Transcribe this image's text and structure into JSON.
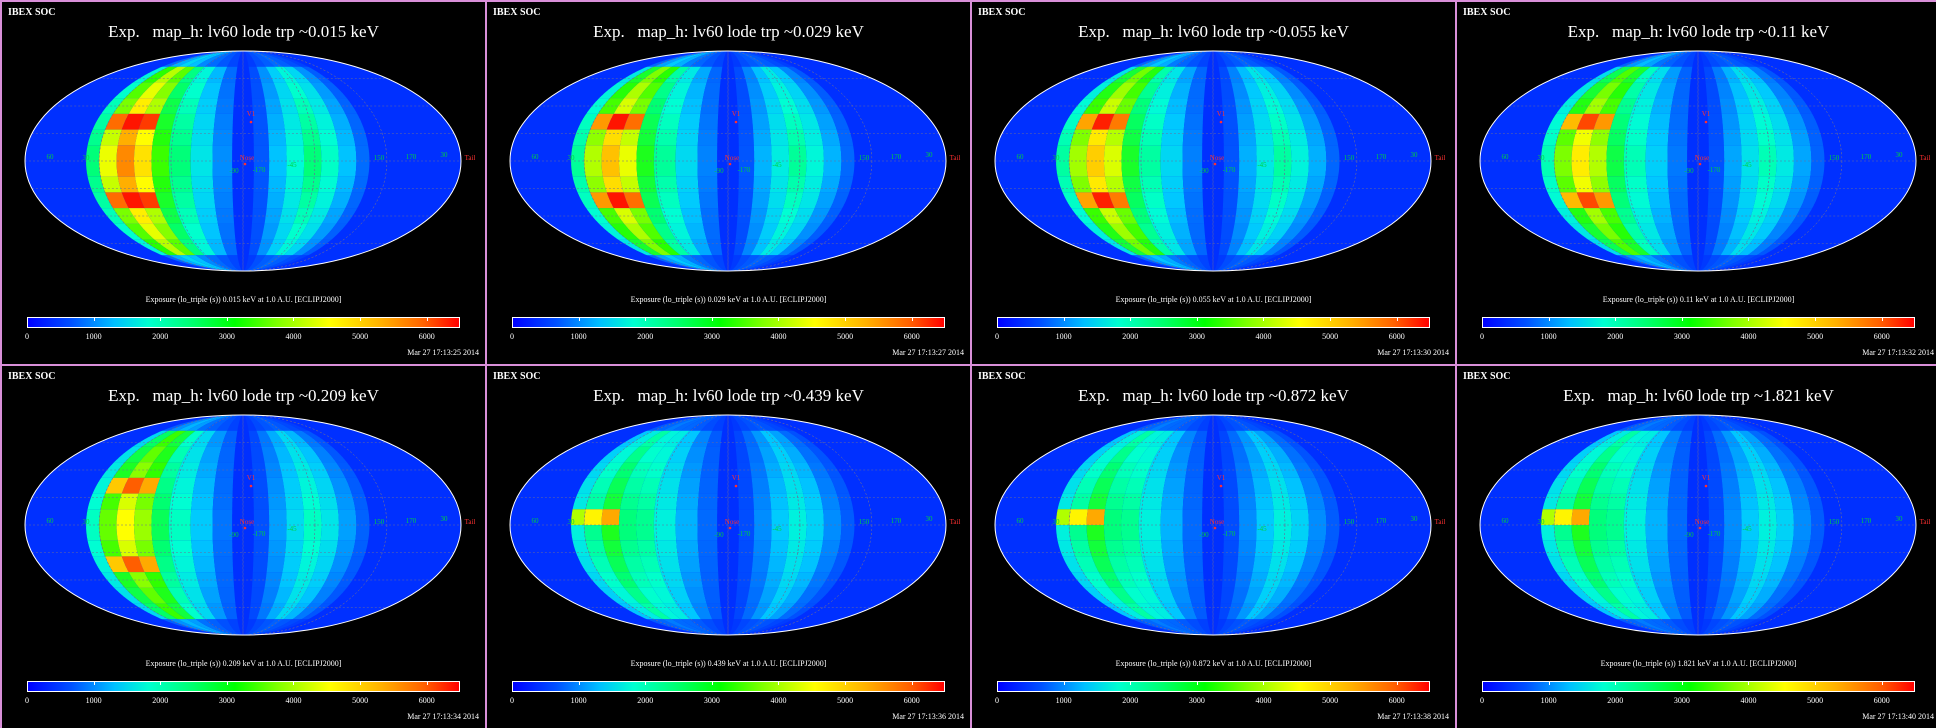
{
  "app_label": "IBEX SOC",
  "colorbar": {
    "ticks": [
      "0",
      "1000",
      "2000",
      "3000",
      "4000",
      "5000",
      "6000"
    ],
    "range": [
      0,
      6500
    ]
  },
  "map_labels": {
    "nose": "Nose",
    "tail": "Tail",
    "v1": "V1",
    "lon_left_1": "60",
    "lon_left_2": "30",
    "lon_center_1": "-90",
    "lon_center_2": "-45",
    "lon_center_3": "-170",
    "lon_right_1": "150",
    "lon_right_2": "170",
    "lon_right_3": "30"
  },
  "colors": {
    "background": "#000000",
    "panel_border": "#d98fd9",
    "sky": "#0030ff",
    "label_red": "#ff3030",
    "label_green": "#00d040"
  },
  "panels": [
    {
      "title": "Exp.   map_h: lv60 lode trp ~0.015 keV",
      "caption": "Exposure (lo_triple (s))  0.015 keV at 1.0 A.U. [ECLIPJ2000]",
      "timestamp": "Mar 27  17:13:25 2014",
      "energy_keV": 0.015,
      "peak_level": 1.0
    },
    {
      "title": "Exp.   map_h: lv60 lode trp ~0.029 keV",
      "caption": "Exposure (lo_triple (s))  0.029 keV at 1.0 A.U. [ECLIPJ2000]",
      "timestamp": "Mar 27  17:13:27 2014",
      "energy_keV": 0.029,
      "peak_level": 0.92
    },
    {
      "title": "Exp.   map_h: lv60 lode trp ~0.055 keV",
      "caption": "Exposure (lo_triple (s))  0.055 keV at 1.0 A.U. [ECLIPJ2000]",
      "timestamp": "Mar 27  17:13:30 2014",
      "energy_keV": 0.055,
      "peak_level": 0.9
    },
    {
      "title": "Exp.   map_h: lv60 lode trp ~0.11 keV",
      "caption": "Exposure (lo_triple (s))  0.11 keV at 1.0 A.U. [ECLIPJ2000]",
      "timestamp": "Mar 27  17:13:32 2014",
      "energy_keV": 0.11,
      "peak_level": 0.85
    },
    {
      "title": "Exp.   map_h: lv60 lode trp ~0.209 keV",
      "caption": "Exposure (lo_triple (s))  0.209 keV at 1.0 A.U. [ECLIPJ2000]",
      "timestamp": "Mar 27  17:13:34 2014",
      "energy_keV": 0.209,
      "peak_level": 0.82
    },
    {
      "title": "Exp.   map_h: lv60 lode trp ~0.439 keV",
      "caption": "Exposure (lo_triple (s))  0.439 keV at 1.0 A.U. [ECLIPJ2000]",
      "timestamp": "Mar 27  17:13:36 2014",
      "energy_keV": 0.439,
      "peak_level": 0.72
    },
    {
      "title": "Exp.   map_h: lv60 lode trp ~0.872 keV",
      "caption": "Exposure (lo_triple (s))  0.872 keV at 1.0 A.U. [ECLIPJ2000]",
      "timestamp": "Mar 27  17:13:38 2014",
      "energy_keV": 0.872,
      "peak_level": 0.72
    },
    {
      "title": "Exp.   map_h: lv60 lode trp ~1.821 keV",
      "caption": "Exposure (lo_triple (s))  1.821 keV at 1.0 A.U. [ECLIPJ2000]",
      "timestamp": "Mar 27  17:13:40 2014",
      "energy_keV": 1.821,
      "peak_level": 0.72
    }
  ]
}
